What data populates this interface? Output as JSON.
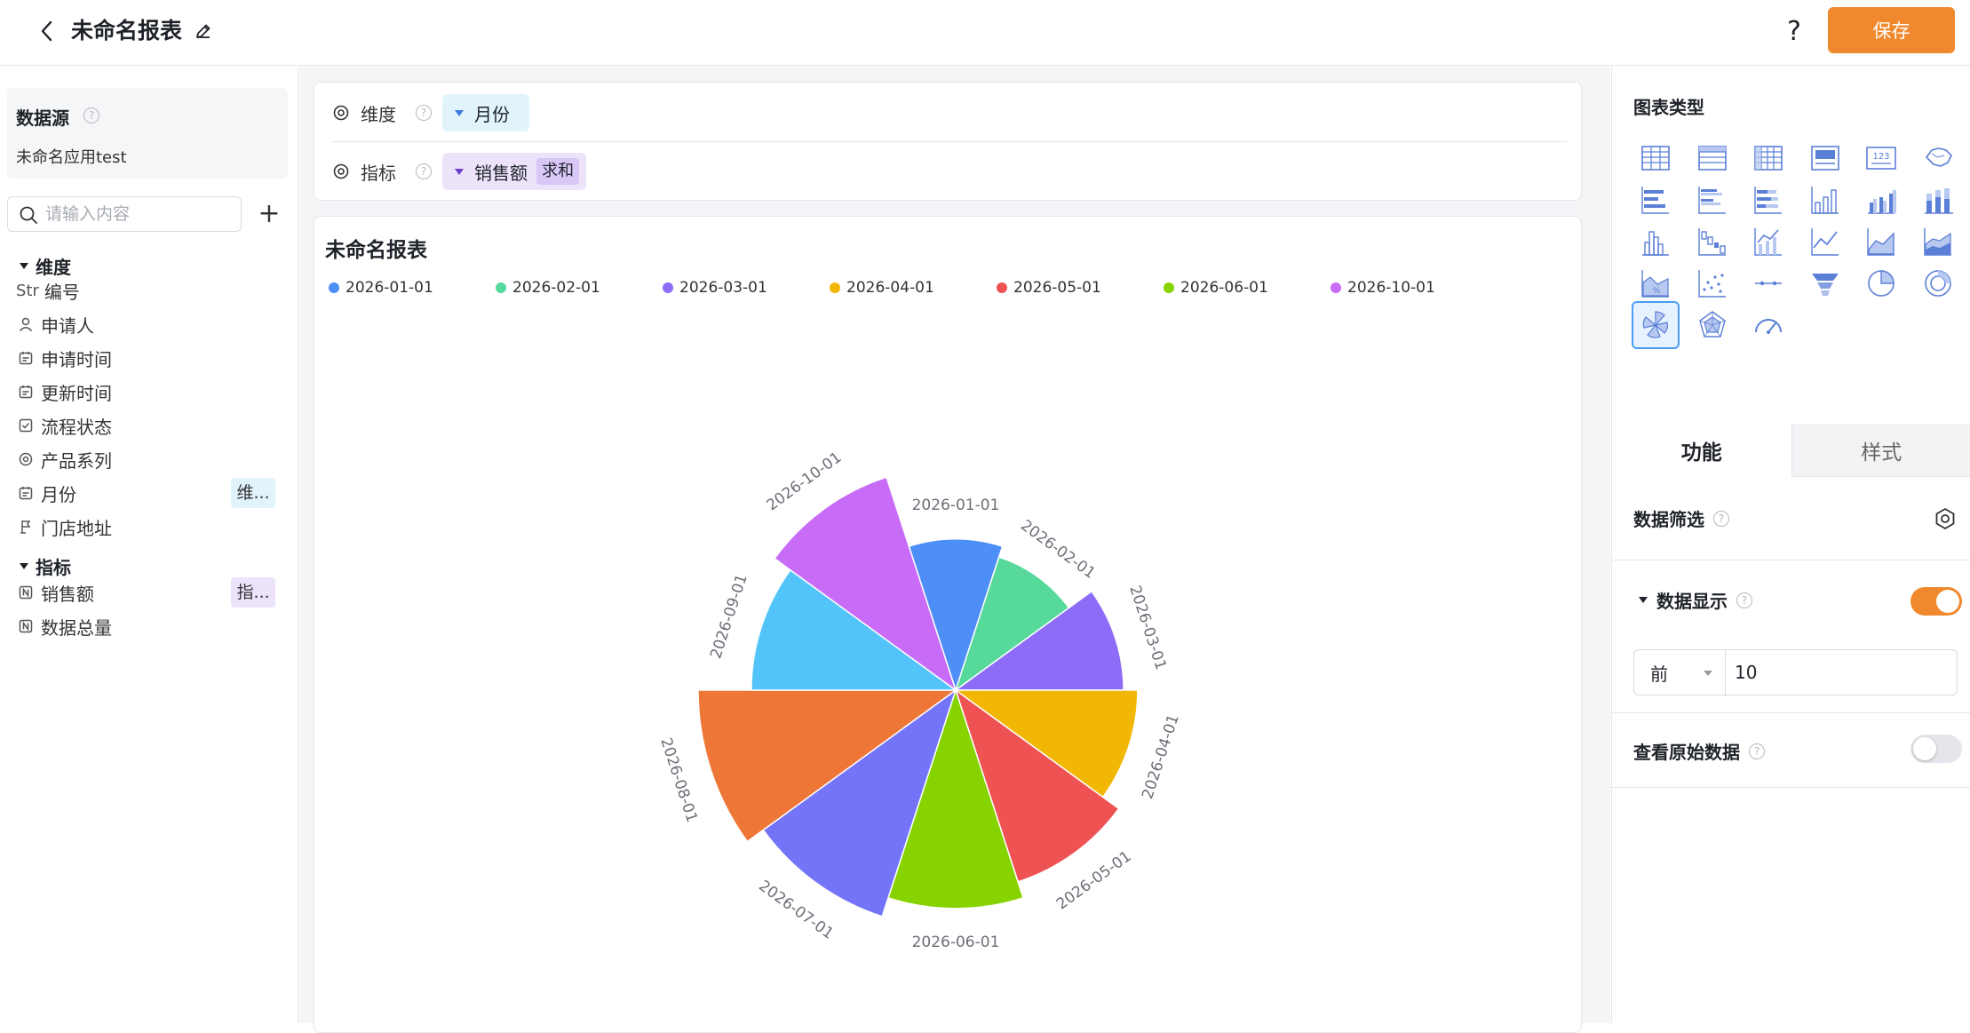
{
  "header": {
    "title": "未命名报表",
    "help_label": "?",
    "save_label": "保存"
  },
  "datasource": {
    "title": "数据源",
    "name": "未命名应用test"
  },
  "search": {
    "placeholder": "请输入内容",
    "add_label": "+"
  },
  "dimensions": {
    "header": "维度",
    "fields": [
      {
        "prefix": "Str",
        "label": "编号",
        "icon": "string-icon"
      },
      {
        "label": "申请人",
        "icon": "person-icon"
      },
      {
        "label": "申请时间",
        "icon": "calendar-icon"
      },
      {
        "label": "更新时间",
        "icon": "calendar-icon"
      },
      {
        "label": "流程状态",
        "icon": "checkbox-icon"
      },
      {
        "label": "产品系列",
        "icon": "radio-icon"
      },
      {
        "label": "月份",
        "icon": "calendar-icon",
        "tag": "维..."
      },
      {
        "label": "门店地址",
        "icon": "location-icon"
      }
    ]
  },
  "metrics": {
    "header": "指标",
    "fields": [
      {
        "label": "销售额",
        "icon": "number-icon",
        "tag": "指..."
      },
      {
        "label": "数据总量",
        "icon": "number-icon"
      }
    ]
  },
  "config": {
    "dimension_label": "维度",
    "dimension_value": "月份",
    "metric_label": "指标",
    "metric_value": "销售额",
    "metric_agg": "求和"
  },
  "chart": {
    "title": "未命名报表"
  },
  "chart_data": {
    "type": "pie",
    "variant": "nightingale-rose",
    "title": "未命名报表",
    "legend_position": "top-left",
    "categories": [
      "2026-01-01",
      "2026-02-01",
      "2026-03-01",
      "2026-04-01",
      "2026-05-01",
      "2026-06-01",
      "2026-07-01",
      "2026-08-01",
      "2026-09-01",
      "2026-10-01"
    ],
    "legend_entries": [
      "2026-01-01",
      "2026-02-01",
      "2026-03-01",
      "2026-04-01",
      "2026-05-01",
      "2026-06-01",
      "2026-10-01"
    ],
    "values": [
      54,
      50,
      60,
      65,
      72,
      78,
      85,
      92,
      73,
      80
    ],
    "colors": [
      "#4e8ef7",
      "#56d99a",
      "#8d6cf7",
      "#f2b705",
      "#ef5252",
      "#86d300",
      "#7474f8",
      "#ee7737",
      "#52c4f9",
      "#c86cf7"
    ]
  },
  "right_panel": {
    "chart_type_title": "图表类型",
    "chart_types": [
      "table-icon",
      "detail-table-icon",
      "pivot-table-icon",
      "card-icon",
      "kpi-number-icon",
      "map-icon",
      "bar-horizontal-icon",
      "bar-grouped-horizontal-icon",
      "bar-stacked-horizontal-icon",
      "column-icon",
      "column-grouped-icon",
      "column-stacked-icon",
      "histogram-icon",
      "waterfall-icon",
      "bar-line-combo-icon",
      "line-icon",
      "area-icon",
      "stacked-area-icon",
      "percent-area-icon",
      "scatter-icon",
      "slope-icon",
      "funnel-icon",
      "pie-icon",
      "donut-icon",
      "rose-icon",
      "radar-icon",
      "gauge-icon"
    ],
    "selected_chart_type": "rose-icon",
    "tabs": [
      "功能",
      "样式"
    ],
    "data_filter_label": "数据筛选",
    "data_display_label": "数据显示",
    "data_display_on": true,
    "display_mode": "前",
    "display_count": "10",
    "raw_data_label": "查看原始数据",
    "raw_data_on": false
  }
}
